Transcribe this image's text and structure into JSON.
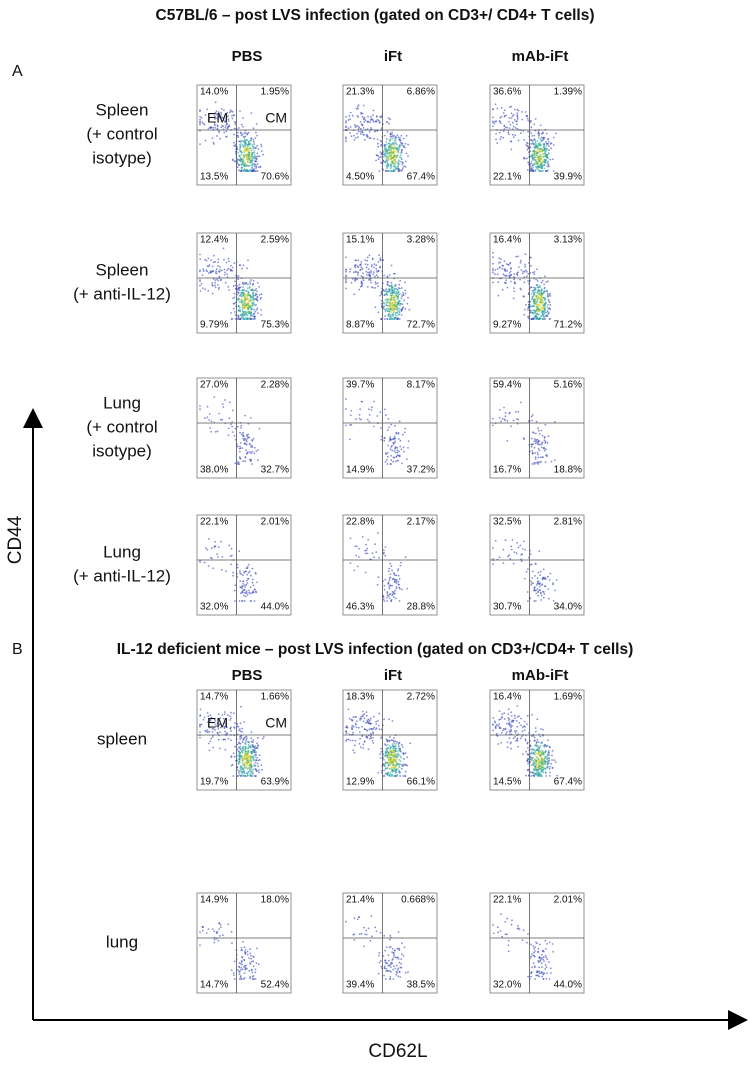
{
  "panels": [
    {
      "label": "A",
      "title": "C57BL/6 – post LVS infection (gated on CD3+/ CD4+ T cells)",
      "columns": [
        "PBS",
        "iFt",
        "mAb-iFt"
      ],
      "gate_labels": [
        "EM",
        "CM"
      ],
      "rows": [
        {
          "lines": [
            "Spleen",
            "(+ control",
            "isotype)"
          ],
          "plots": [
            [
              "14.0%",
              "1.95%",
              "13.5%",
              "70.6%"
            ],
            [
              "21.3%",
              "6.86%",
              "4.50%",
              "67.4%"
            ],
            [
              "36.6%",
              "1.39%",
              "22.1%",
              "39.9%"
            ]
          ]
        },
        {
          "lines": [
            "Spleen",
            "(+ anti-IL-12)"
          ],
          "plots": [
            [
              "12.4%",
              "2.59%",
              "9.79%",
              "75.3%"
            ],
            [
              "15.1%",
              "3.28%",
              "8.87%",
              "72.7%"
            ],
            [
              "16.4%",
              "3.13%",
              "9.27%",
              "71.2%"
            ]
          ]
        },
        {
          "lines": [
            "Lung",
            "(+ control",
            "isotype)"
          ],
          "plots": [
            [
              "27.0%",
              "2.28%",
              "38.0%",
              "32.7%"
            ],
            [
              "39.7%",
              "8.17%",
              "14.9%",
              "37.2%"
            ],
            [
              "59.4%",
              "5.16%",
              "16.7%",
              "18.8%"
            ]
          ]
        },
        {
          "lines": [
            "Lung",
            "(+ anti-IL-12)"
          ],
          "plots": [
            [
              "22.1%",
              "2.01%",
              "32.0%",
              "44.0%"
            ],
            [
              "22.8%",
              "2.17%",
              "46.3%",
              "28.8%"
            ],
            [
              "32.5%",
              "2.81%",
              "30.7%",
              "34.0%"
            ]
          ]
        }
      ]
    },
    {
      "label": "B",
      "title": "IL-12 deficient mice – post LVS infection (gated on CD3+/CD4+ T cells)",
      "columns": [
        "PBS",
        "iFt",
        "mAb-iFt"
      ],
      "gate_labels": [
        "EM",
        "CM"
      ],
      "rows": [
        {
          "lines": [
            "spleen"
          ],
          "plots": [
            [
              "14.7%",
              "1.66%",
              "19.7%",
              "63.9%"
            ],
            [
              "18.3%",
              "2.72%",
              "12.9%",
              "66.1%"
            ],
            [
              "16.4%",
              "1.69%",
              "14.5%",
              "67.4%"
            ]
          ]
        },
        {
          "lines": [
            "lung"
          ],
          "plots": [
            [
              "14.9%",
              "18.0%",
              "14.7%",
              "52.4%"
            ],
            [
              "21.4%",
              "0.668%",
              "39.4%",
              "38.5%"
            ],
            [
              "22.1%",
              "2.01%",
              "32.0%",
              "44.0%"
            ]
          ]
        }
      ]
    }
  ],
  "axes": {
    "y": "CD44",
    "x": "CD62L"
  }
}
